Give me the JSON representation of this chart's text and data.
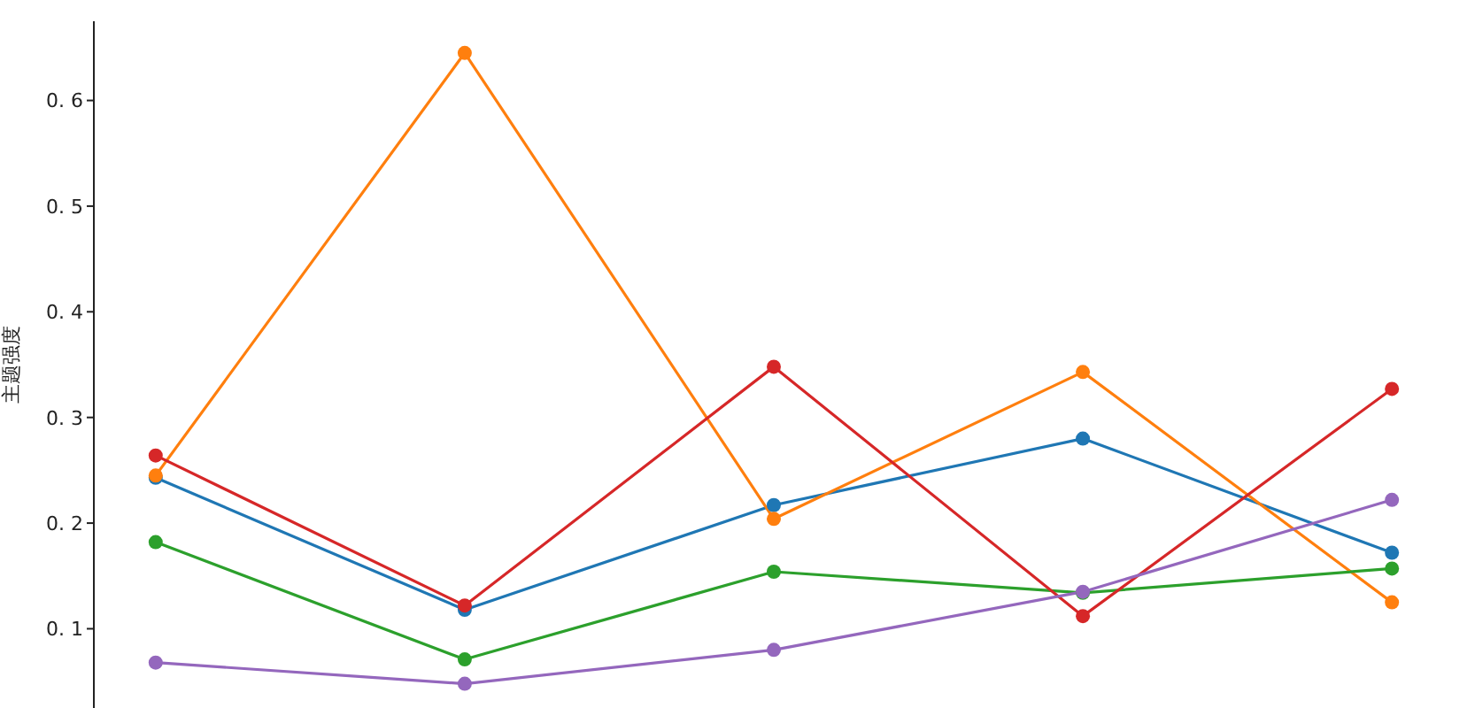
{
  "chart_data": {
    "type": "line",
    "ylabel": "主题强度",
    "categories": [
      null,
      null,
      null,
      null,
      null
    ],
    "series": [
      {
        "color": "#1f77b4",
        "values": [
          0.243,
          0.118,
          0.217,
          0.28,
          0.172
        ]
      },
      {
        "color": "#ff7f0e",
        "values": [
          0.245,
          0.645,
          0.204,
          0.343,
          0.125
        ]
      },
      {
        "color": "#2ca02c",
        "values": [
          0.182,
          0.071,
          0.154,
          0.134,
          0.157
        ]
      },
      {
        "color": "#d62728",
        "values": [
          0.264,
          0.122,
          0.348,
          0.112,
          0.327
        ]
      },
      {
        "color": "#9467bd",
        "values": [
          0.068,
          0.048,
          0.08,
          0.135,
          0.222
        ]
      }
    ],
    "ylim": [
      0.025,
      0.675
    ],
    "yticks": [
      0.1,
      0.2,
      0.3,
      0.4,
      0.5,
      0.6
    ],
    "marker": "circle",
    "grid": false,
    "legend": false
  }
}
